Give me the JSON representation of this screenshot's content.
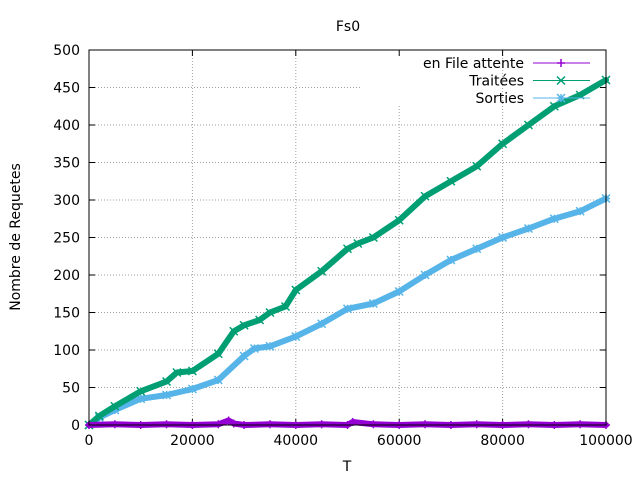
{
  "chart_data": {
    "type": "line",
    "title": "Fs0",
    "xlabel": "T",
    "ylabel": "Nombre de Requetes",
    "xlim": [
      0,
      100000
    ],
    "ylim": [
      0,
      500
    ],
    "x_ticks": [
      "0",
      "20000",
      "40000",
      "60000",
      "80000",
      "100000"
    ],
    "y_ticks": [
      "0",
      "50",
      "100",
      "150",
      "200",
      "250",
      "300",
      "350",
      "400",
      "450",
      "500"
    ],
    "grid": true,
    "legend_position": "top-right",
    "series": [
      {
        "name": "en File attente",
        "color": "#9400d3",
        "marker": "plus",
        "x": [
          0,
          5000,
          10000,
          15000,
          20000,
          25000,
          27000,
          28000,
          30000,
          35000,
          40000,
          45000,
          50000,
          51000,
          55000,
          60000,
          65000,
          70000,
          75000,
          80000,
          85000,
          90000,
          95000,
          100000
        ],
        "y": [
          0,
          1,
          0,
          1,
          0,
          1,
          6,
          2,
          0,
          1,
          0,
          1,
          0,
          4,
          1,
          0,
          1,
          0,
          1,
          0,
          1,
          0,
          1,
          0
        ]
      },
      {
        "name": "Traitées",
        "color": "#009e73",
        "marker": "cross",
        "x": [
          0,
          2000,
          5000,
          10000,
          15000,
          17000,
          20000,
          25000,
          28000,
          30000,
          33000,
          35000,
          38000,
          40000,
          45000,
          50000,
          52000,
          55000,
          60000,
          65000,
          70000,
          75000,
          80000,
          85000,
          90000,
          95000,
          100000
        ],
        "y": [
          0,
          12,
          25,
          45,
          58,
          70,
          72,
          95,
          125,
          133,
          140,
          150,
          158,
          180,
          205,
          235,
          242,
          250,
          273,
          305,
          325,
          345,
          375,
          400,
          425,
          440,
          460
        ]
      },
      {
        "name": "Sorties",
        "color": "#56b4e9",
        "marker": "star",
        "x": [
          0,
          2000,
          5000,
          10000,
          15000,
          20000,
          25000,
          30000,
          32000,
          35000,
          40000,
          45000,
          50000,
          55000,
          60000,
          65000,
          70000,
          75000,
          80000,
          85000,
          90000,
          95000,
          100000
        ],
        "y": [
          0,
          10,
          20,
          35,
          40,
          48,
          60,
          92,
          102,
          105,
          118,
          135,
          155,
          162,
          178,
          200,
          220,
          235,
          250,
          262,
          275,
          285,
          302
        ]
      }
    ]
  }
}
